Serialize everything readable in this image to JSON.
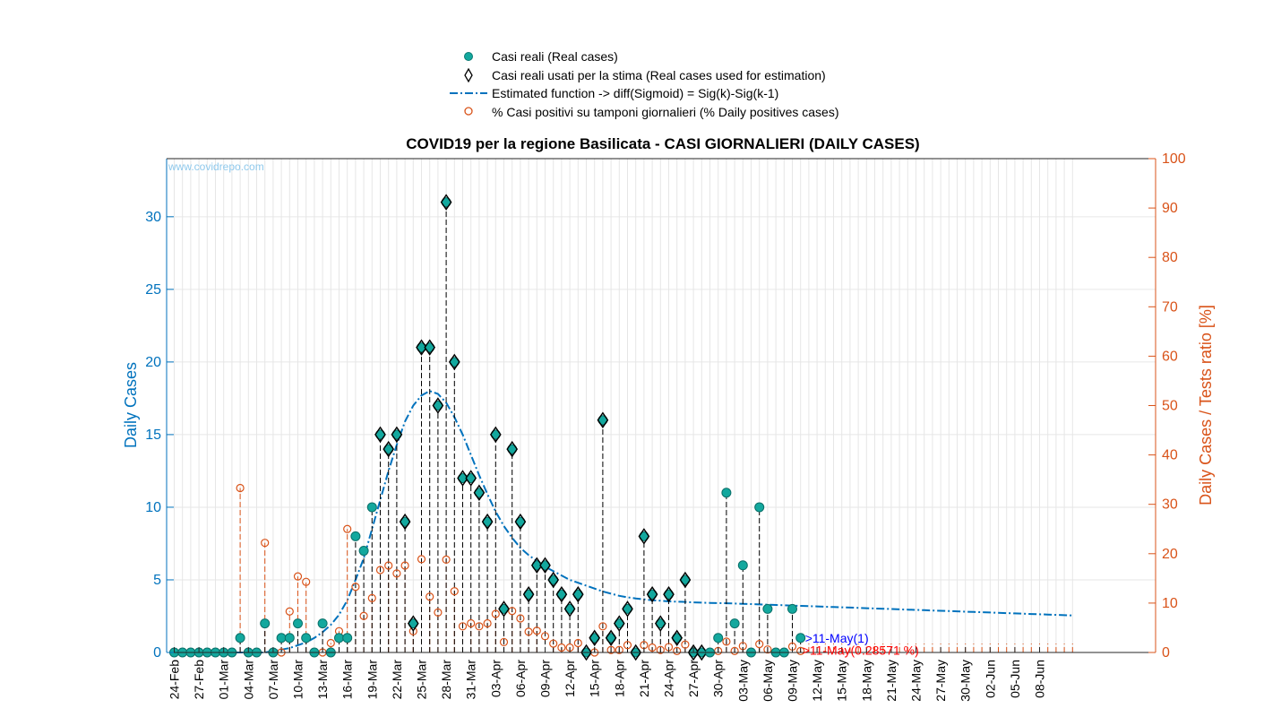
{
  "chart_data": {
    "type": "scatter",
    "title": "COVID19 per la regione Basilicata - CASI GIORNALIERI (DAILY CASES)",
    "watermark": "www.covidrepo.com",
    "ylabel": "Daily Cases",
    "ylabel_right": "Daily Cases / Tests ratio [%]",
    "ylim": [
      0,
      34
    ],
    "ylim_right": [
      0,
      100
    ],
    "yticks": [
      "0",
      "5",
      "10",
      "15",
      "20",
      "25",
      "30"
    ],
    "yticks_right": [
      "0",
      "10",
      "20",
      "30",
      "40",
      "50",
      "60",
      "70",
      "80",
      "90",
      "100"
    ],
    "grid": true,
    "legend_position": "top-center",
    "colors": {
      "cases": "#13A89E",
      "curve": "#0072BD",
      "pct": "#D95319",
      "grid": "#e6e6e6"
    },
    "legend": [
      "Casi reali (Real cases)",
      "Casi reali usati per la stima (Real cases used for estimation)",
      "Estimated function -> diff(Sigmoid) = Sig(k)-Sig(k-1)",
      "% Casi positivi su tamponi giornalieri (% Daily positives cases)"
    ],
    "xticks": [
      "24-Feb",
      "27-Feb",
      "01-Mar",
      "04-Mar",
      "07-Mar",
      "10-Mar",
      "13-Mar",
      "16-Mar",
      "19-Mar",
      "22-Mar",
      "25-Mar",
      "28-Mar",
      "31-Mar",
      "03-Apr",
      "06-Apr",
      "09-Apr",
      "12-Apr",
      "15-Apr",
      "18-Apr",
      "21-Apr",
      "24-Apr",
      "27-Apr",
      "30-Apr",
      "03-May",
      "06-May",
      "09-May",
      "12-May",
      "15-May",
      "18-May",
      "21-May",
      "24-May",
      "27-May",
      "30-May",
      "02-Jun",
      "05-Jun",
      "08-Jun"
    ],
    "x_start": "24-Feb",
    "series": [
      {
        "name": "Casi reali (Real cases)",
        "values": [
          0,
          0,
          0,
          0,
          0,
          0,
          0,
          0,
          1,
          0,
          0,
          2,
          0,
          1,
          1,
          2,
          1,
          0,
          2,
          0,
          1,
          1,
          8,
          7,
          10,
          15,
          14,
          15,
          9,
          2,
          21,
          21,
          17,
          31,
          20,
          12,
          12,
          11,
          9,
          15,
          3,
          14,
          9,
          4,
          6,
          6,
          5,
          4,
          3,
          4,
          0,
          1,
          16,
          1,
          2,
          3,
          0,
          8,
          4,
          2,
          4,
          1,
          5,
          0,
          0,
          0,
          1,
          11,
          2,
          6,
          0,
          10,
          3,
          0,
          0,
          3,
          1
        ]
      },
      {
        "name": "Casi reali usati per la stima (Real cases used for estimation)",
        "start_index": 25,
        "end_index": 64
      },
      {
        "name": "Estimated function -> diff(Sigmoid) = Sig(k)-Sig(k-1)",
        "values": [
          0,
          0,
          0,
          0,
          0,
          0,
          0,
          0,
          0,
          0,
          0,
          0,
          0.1,
          0.2,
          0.3,
          0.5,
          0.7,
          1.0,
          1.4,
          1.9,
          2.6,
          3.6,
          5.0,
          6.5,
          8.5,
          10.5,
          12.5,
          14.3,
          15.9,
          17.0,
          17.7,
          18.0,
          17.8,
          17.2,
          16.2,
          15.0,
          13.6,
          12.2,
          10.9,
          9.7,
          8.7,
          7.9,
          7.2,
          6.7,
          6.3,
          5.9,
          5.6,
          5.3,
          5.0,
          4.8,
          4.6,
          4.4,
          4.2,
          4.05,
          3.9,
          3.8,
          3.72,
          3.66,
          3.6,
          3.56,
          3.52,
          3.5,
          3.48,
          3.45,
          3.43,
          3.41,
          3.4,
          3.39,
          3.37,
          3.35,
          3.33,
          3.31,
          3.29,
          3.27,
          3.25,
          3.23,
          3.21,
          3.19,
          3.17,
          3.15,
          3.13,
          3.11,
          3.09,
          3.07,
          3.05,
          3.03,
          3.01,
          2.99,
          2.97,
          2.95,
          2.93,
          2.91,
          2.89,
          2.87,
          2.85,
          2.83,
          2.81,
          2.79,
          2.77,
          2.75,
          2.73,
          2.71,
          2.69,
          2.67,
          2.65,
          2.63,
          2.61,
          2.59,
          2.57,
          2.55
        ]
      },
      {
        "name": "% Casi positivi su tamponi giornalieri (% Daily positives cases)",
        "values": [
          0,
          0,
          0,
          0,
          0,
          0,
          0,
          0,
          33.3,
          0,
          0,
          22.2,
          0,
          0,
          8.3,
          15.4,
          14.3,
          0,
          0,
          1.9,
          4.3,
          25,
          13.3,
          7.4,
          11,
          16.7,
          17.6,
          16,
          17.6,
          4.3,
          18.9,
          11.3,
          8.1,
          18.8,
          12.4,
          5.3,
          5.9,
          5.3,
          5.9,
          7.8,
          2.1,
          8.4,
          6.9,
          4.2,
          4.4,
          3.3,
          1.8,
          1.0,
          1.0,
          1.9,
          0,
          0,
          5.3,
          0.5,
          0.5,
          1.5,
          0,
          1.5,
          1.0,
          0.5,
          1.1,
          0.3,
          1.6,
          0,
          0,
          0,
          0.3,
          2.2,
          0.3,
          1.3,
          0,
          1.7,
          0.6,
          0,
          0,
          1.2,
          0.3
        ]
      }
    ],
    "annotations": {
      "last_case": ">11-May(1)",
      "last_pct": ">11-May(0.28571 %)"
    }
  }
}
